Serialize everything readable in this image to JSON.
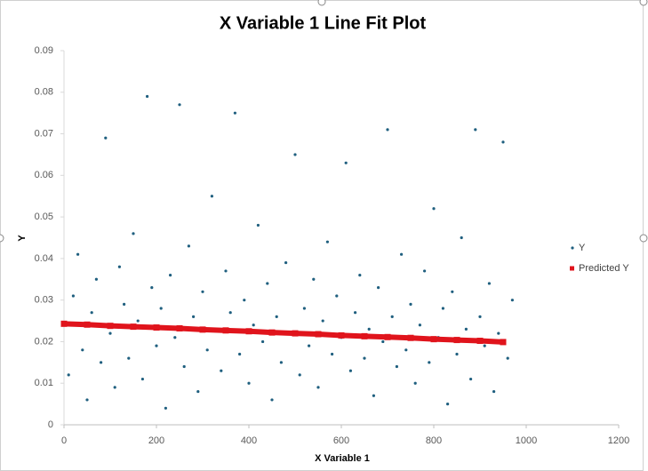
{
  "chart_data": {
    "type": "scatter",
    "title": "X Variable 1 Line Fit  Plot",
    "x_label": "X Variable 1",
    "y_label": "Y",
    "xlim": [
      0,
      1200
    ],
    "ylim": [
      0,
      0.09
    ],
    "xticks": [
      0,
      200,
      400,
      600,
      800,
      1000,
      1200
    ],
    "yticks": [
      0,
      0.01,
      0.02,
      0.03,
      0.04,
      0.05,
      0.06,
      0.07,
      0.08,
      0.09
    ],
    "legend": "right",
    "series": [
      {
        "name": "Y",
        "color": "#1f5f7f",
        "marker": "circle",
        "x": [
          0,
          10,
          20,
          30,
          40,
          50,
          60,
          70,
          80,
          90,
          100,
          110,
          120,
          130,
          140,
          150,
          160,
          170,
          180,
          190,
          200,
          210,
          220,
          230,
          240,
          250,
          260,
          270,
          280,
          290,
          300,
          310,
          320,
          330,
          340,
          350,
          360,
          370,
          380,
          390,
          400,
          410,
          420,
          430,
          440,
          450,
          460,
          470,
          480,
          490,
          500,
          510,
          520,
          530,
          540,
          550,
          560,
          570,
          580,
          590,
          600,
          610,
          620,
          630,
          640,
          650,
          660,
          670,
          680,
          690,
          700,
          710,
          720,
          730,
          740,
          750,
          760,
          770,
          780,
          790,
          800,
          810,
          820,
          830,
          840,
          850,
          860,
          870,
          880,
          890,
          900,
          910,
          920,
          930,
          940,
          950,
          960,
          970
        ],
        "values": [
          0.024,
          0.012,
          0.031,
          0.041,
          0.018,
          0.006,
          0.027,
          0.035,
          0.015,
          0.069,
          0.022,
          0.009,
          0.038,
          0.029,
          0.016,
          0.046,
          0.025,
          0.011,
          0.079,
          0.033,
          0.019,
          0.028,
          0.004,
          0.036,
          0.021,
          0.077,
          0.014,
          0.043,
          0.026,
          0.008,
          0.032,
          0.018,
          0.055,
          0.023,
          0.013,
          0.037,
          0.027,
          0.075,
          0.017,
          0.03,
          0.01,
          0.024,
          0.048,
          0.02,
          0.034,
          0.006,
          0.026,
          0.015,
          0.039,
          0.022,
          0.065,
          0.012,
          0.028,
          0.019,
          0.035,
          0.009,
          0.025,
          0.044,
          0.017,
          0.031,
          0.021,
          0.063,
          0.013,
          0.027,
          0.036,
          0.016,
          0.023,
          0.007,
          0.033,
          0.02,
          0.071,
          0.026,
          0.014,
          0.041,
          0.018,
          0.029,
          0.01,
          0.024,
          0.037,
          0.015,
          0.052,
          0.021,
          0.028,
          0.005,
          0.032,
          0.017,
          0.045,
          0.023,
          0.011,
          0.071,
          0.026,
          0.019,
          0.034,
          0.008,
          0.022,
          0.068,
          0.016,
          0.03
        ]
      },
      {
        "name": "Predicted Y",
        "color": "#e0141c",
        "marker": "square",
        "x": [
          0,
          50,
          100,
          150,
          200,
          250,
          300,
          350,
          400,
          450,
          500,
          550,
          600,
          650,
          700,
          750,
          800,
          850,
          900,
          950
        ],
        "values": [
          0.0243,
          0.0241,
          0.0238,
          0.0236,
          0.0234,
          0.0232,
          0.0229,
          0.0227,
          0.0225,
          0.0222,
          0.022,
          0.0218,
          0.0215,
          0.0213,
          0.0211,
          0.0209,
          0.0206,
          0.0204,
          0.0202,
          0.0199
        ]
      }
    ]
  }
}
